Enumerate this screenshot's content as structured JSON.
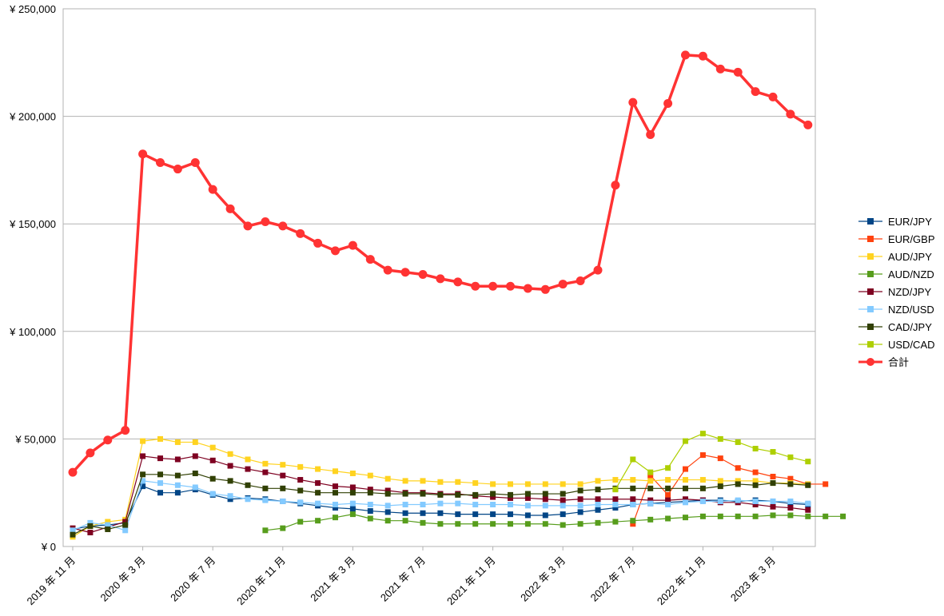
{
  "chart_data": {
    "type": "line",
    "title": "",
    "xlabel": "",
    "ylabel": "",
    "ylim": [
      0,
      250000
    ],
    "yticks": [
      0,
      50000,
      100000,
      150000,
      200000,
      250000
    ],
    "ytick_labels": [
      "¥ 0",
      "¥ 50,000",
      "¥ 100,000",
      "¥ 150,000",
      "¥ 200,000",
      "¥ 250,000"
    ],
    "x_start": "2019-11",
    "x_count": 43,
    "xtick_labels": [
      {
        "index": 0,
        "label": "2019 年 11 月"
      },
      {
        "index": 4,
        "label": "2020 年 3 月"
      },
      {
        "index": 8,
        "label": "2020 年 7 月"
      },
      {
        "index": 12,
        "label": "2020 年 11 月"
      },
      {
        "index": 16,
        "label": "2021 年 3 月"
      },
      {
        "index": 20,
        "label": "2021 年 7 月"
      },
      {
        "index": 24,
        "label": "2021 年 11 月"
      },
      {
        "index": 28,
        "label": "2022 年 3 月"
      },
      {
        "index": 32,
        "label": "2022 年 7 月"
      },
      {
        "index": 36,
        "label": "2022 年 11 月"
      },
      {
        "index": 40,
        "label": "2023 年 3 月"
      }
    ],
    "grid": true,
    "legend_position": "right",
    "series": [
      {
        "name": "EUR/JPY",
        "color": "#004586",
        "marker": "square",
        "start": 0,
        "values": [
          8000,
          9500,
          10000,
          11000,
          28000,
          25000,
          25000,
          26500,
          24000,
          22000,
          22500,
          22000,
          21000,
          20000,
          19000,
          18000,
          17500,
          16500,
          16000,
          15500,
          15500,
          15500,
          15000,
          15000,
          15000,
          15000,
          14500,
          14500,
          15000,
          16000,
          17000,
          18000,
          19500,
          20000,
          20500,
          21000,
          21500,
          21500,
          21000,
          21500,
          21000,
          20000,
          19500
        ]
      },
      {
        "name": "EUR/GBP",
        "color": "#ff420e",
        "marker": "square",
        "start": 32,
        "values": [
          10500,
          33000,
          24000,
          36000,
          42500,
          41000,
          36500,
          34500,
          32500,
          31500,
          29000,
          29000
        ]
      },
      {
        "name": "AUD/JPY",
        "color": "#ffd320",
        "marker": "square",
        "start": 0,
        "values": [
          4500,
          9500,
          11500,
          12500,
          49000,
          50000,
          48500,
          48500,
          46000,
          43000,
          40500,
          38500,
          38000,
          37000,
          36000,
          35000,
          34000,
          33000,
          31500,
          30500,
          30500,
          30000,
          30000,
          29500,
          29000,
          29000,
          29000,
          29000,
          29000,
          29000,
          30500,
          31000,
          31000,
          30500,
          31000,
          31000,
          31000,
          30500,
          30500,
          30500,
          29500,
          29500,
          29000
        ]
      },
      {
        "name": "AUD/NZD",
        "color": "#579d1c",
        "marker": "square",
        "start": 11,
        "values": [
          7500,
          8500,
          11500,
          12000,
          13500,
          15000,
          13000,
          12000,
          12000,
          11000,
          10500,
          10500,
          10500,
          10500,
          10500,
          10500,
          10500,
          10000,
          10500,
          11000,
          11500,
          12000,
          12500,
          13000,
          13500,
          14000,
          14000,
          14000,
          14000,
          14500,
          14500,
          14000,
          14000,
          14000
        ]
      },
      {
        "name": "NZD/JPY",
        "color": "#7e0021",
        "marker": "square",
        "start": 0,
        "values": [
          8500,
          6500,
          9000,
          11500,
          42000,
          41000,
          40500,
          42000,
          40000,
          37500,
          36000,
          34500,
          33000,
          31000,
          29500,
          28000,
          27500,
          26500,
          26000,
          25000,
          25000,
          24500,
          24500,
          23500,
          23000,
          22500,
          22500,
          22000,
          21500,
          22000,
          22000,
          22000,
          22000,
          21500,
          21500,
          22000,
          21500,
          20500,
          20500,
          19500,
          18500,
          18000,
          17000
        ]
      },
      {
        "name": "NZD/USD",
        "color": "#83caff",
        "marker": "square",
        "start": 0,
        "values": [
          7500,
          11000,
          10000,
          7500,
          30500,
          29500,
          28500,
          27500,
          24500,
          23500,
          22000,
          21500,
          21000,
          20500,
          20000,
          19500,
          20000,
          19500,
          19000,
          19500,
          19500,
          20000,
          20000,
          19500,
          19500,
          19500,
          19000,
          19000,
          19000,
          19000,
          19500,
          19500,
          19500,
          20000,
          19500,
          20500,
          21000,
          21000,
          21500,
          21000,
          21000,
          21000,
          20000
        ]
      },
      {
        "name": "CAD/JPY",
        "color": "#314004",
        "marker": "square",
        "start": 0,
        "values": [
          5500,
          9500,
          8000,
          10000,
          33500,
          33500,
          33000,
          34000,
          31500,
          30500,
          28500,
          27000,
          27000,
          26000,
          25000,
          25000,
          25000,
          25000,
          24500,
          24500,
          24500,
          24000,
          24000,
          24000,
          24500,
          24000,
          24500,
          24500,
          24500,
          26000,
          26500,
          27000,
          27000,
          27000,
          27000,
          27000,
          27000,
          28000,
          29000,
          28500,
          29500,
          29000,
          28500
        ]
      },
      {
        "name": "USD/CAD",
        "color": "#aecf00",
        "marker": "square",
        "start": 31,
        "values": [
          26500,
          40500,
          34500,
          36500,
          49000,
          52500,
          50000,
          48500,
          45500,
          44000,
          41500,
          39500
        ]
      },
      {
        "name": "合計",
        "color": "#ff3333",
        "marker": "circle",
        "start": 0,
        "values": [
          34500,
          43500,
          49500,
          54000,
          182500,
          178500,
          175500,
          178500,
          166000,
          157000,
          149000,
          151000,
          149000,
          145500,
          141000,
          137500,
          140000,
          133500,
          128500,
          127500,
          126500,
          124500,
          123000,
          121000,
          121000,
          121000,
          120000,
          119500,
          122000,
          123500,
          128500,
          168000,
          206500,
          191500,
          206000,
          228500,
          228000,
          222000,
          220500,
          211500,
          209000,
          201000,
          196000
        ]
      }
    ]
  }
}
